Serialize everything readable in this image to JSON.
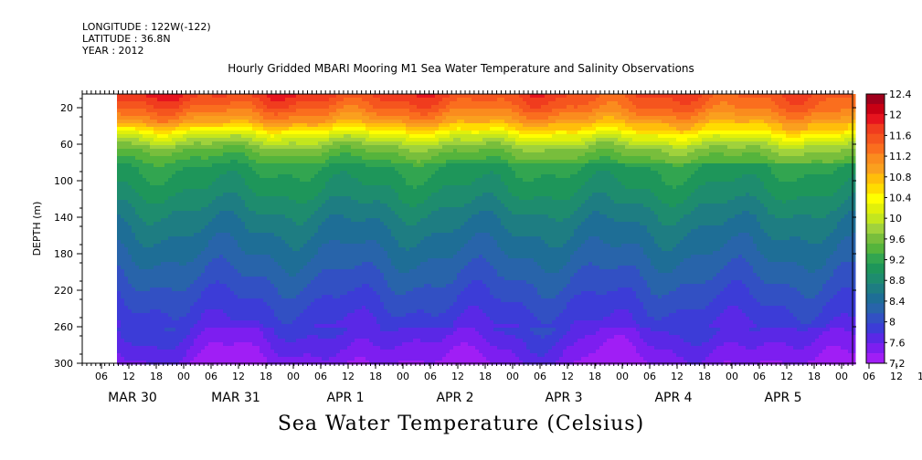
{
  "header": {
    "longitude": "LONGITUDE : 122W(-122)",
    "latitude": "LATITUDE : 36.8N",
    "year": "YEAR : 2012"
  },
  "chart_data": {
    "type": "heatmap",
    "title": "Hourly Gridded MBARI Mooring M1 Sea Water Temperature and Salinity Observations",
    "bottom_title": "Sea Water Temperature (Celsius)",
    "ylabel": "DEPTH (m)",
    "ylim": [
      300,
      0
    ],
    "y_ticks": [
      20,
      60,
      100,
      140,
      180,
      220,
      260,
      300
    ],
    "x_hour_ticks": [
      "06",
      "12",
      "18",
      "00",
      "06",
      "12",
      "18",
      "00",
      "06",
      "12",
      "18",
      "00",
      "06",
      "12",
      "18",
      "00",
      "06",
      "12",
      "18",
      "00",
      "06",
      "12",
      "18",
      "00",
      "06",
      "12",
      "18",
      "00",
      "06",
      "12",
      "18",
      "00"
    ],
    "x_day_labels": [
      "MAR 30",
      "MAR 31",
      "APR  1",
      "APR  2",
      "APR  3",
      "APR  4",
      "APR  5"
    ],
    "data_start_hour_offset": 9,
    "colorbar": {
      "ticks": [
        12.4,
        12,
        11.6,
        11.2,
        10.8,
        10.4,
        10,
        9.6,
        9.2,
        8.8,
        8.4,
        8,
        7.6,
        7.2
      ],
      "levels": [
        12.4,
        12.2,
        12.0,
        11.8,
        11.6,
        11.4,
        11.2,
        11.0,
        10.8,
        10.6,
        10.4,
        10.2,
        10.0,
        9.8,
        9.6,
        9.4,
        9.2,
        9.0,
        8.8,
        8.6,
        8.4,
        8.2,
        8.0,
        7.8,
        7.6,
        7.4,
        7.2
      ],
      "colors": [
        "#a0001c",
        "#c80014",
        "#e6141e",
        "#f03c1e",
        "#f5551e",
        "#fa6e1e",
        "#fa8c1e",
        "#faa01e",
        "#ffbe0a",
        "#ffdc00",
        "#ffff00",
        "#e1f00a",
        "#c3e61e",
        "#a0d23c",
        "#78be3c",
        "#55b43c",
        "#32a550",
        "#1e965a",
        "#1e8c6e",
        "#1e7d82",
        "#1e6e96",
        "#2864aa",
        "#3250c3",
        "#3c3cd7",
        "#5a28e6",
        "#7d1ef0",
        "#a01ef5"
      ]
    },
    "depth_profile": [
      {
        "depth": 5,
        "temp": 11.5
      },
      {
        "depth": 20,
        "temp": 11.3
      },
      {
        "depth": 35,
        "temp": 10.9
      },
      {
        "depth": 50,
        "temp": 10.0
      },
      {
        "depth": 65,
        "temp": 9.4
      },
      {
        "depth": 85,
        "temp": 9.0
      },
      {
        "depth": 110,
        "temp": 8.8
      },
      {
        "depth": 140,
        "temp": 8.5
      },
      {
        "depth": 180,
        "temp": 8.2
      },
      {
        "depth": 220,
        "temp": 7.9
      },
      {
        "depth": 260,
        "temp": 7.6
      },
      {
        "depth": 300,
        "temp": 7.2
      }
    ]
  }
}
